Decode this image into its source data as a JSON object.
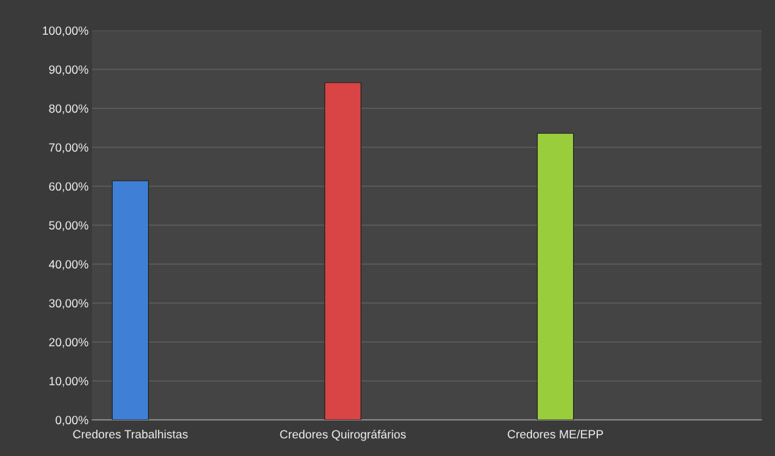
{
  "chart_data": {
    "type": "bar",
    "categories": [
      "Credores Trabalhistas",
      "Credores Quirográfários",
      "Credores ME/EPP"
    ],
    "values": [
      61.4,
      86.6,
      73.6
    ],
    "colors": [
      "#3f7fd6",
      "#d94444",
      "#9acd3c"
    ],
    "ylim": [
      0,
      100
    ],
    "yticks": [
      {
        "value": 0,
        "label": "0,00%"
      },
      {
        "value": 10,
        "label": "10,00%"
      },
      {
        "value": 20,
        "label": "20,00%"
      },
      {
        "value": 30,
        "label": "30,00%"
      },
      {
        "value": 40,
        "label": "40,00%"
      },
      {
        "value": 50,
        "label": "50,00%"
      },
      {
        "value": 60,
        "label": "60,00%"
      },
      {
        "value": 70,
        "label": "70,00%"
      },
      {
        "value": 80,
        "label": "80,00%"
      },
      {
        "value": 90,
        "label": "90,00%"
      },
      {
        "value": 100,
        "label": "100,00%"
      }
    ],
    "grid": "y"
  }
}
